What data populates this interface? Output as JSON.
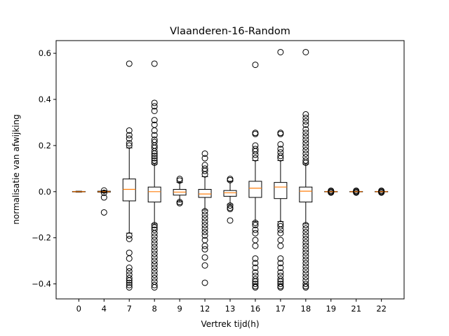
{
  "chart_data": {
    "type": "box",
    "title": "Vlaanderen-16-Random",
    "xlabel": "Vertrek tijd(h)",
    "ylabel": "normalisatie van afwijking",
    "ylim": [
      -0.465,
      0.655
    ],
    "yticks": [
      -0.4,
      -0.2,
      0.0,
      0.2,
      0.4,
      0.6
    ],
    "ytick_labels": [
      "−0.4",
      "−0.2",
      "0.0",
      "0.2",
      "0.4",
      "0.6"
    ],
    "grid": false,
    "colors": {
      "box": "#000000",
      "median": "#ff7f0e",
      "flier": "#000000"
    },
    "categories": [
      "0",
      "4",
      "7",
      "8",
      "9",
      "12",
      "13",
      "16",
      "17",
      "18",
      "19",
      "21",
      "22"
    ],
    "boxes": [
      {
        "label": "0",
        "q1": -0.001,
        "median": 0.0,
        "q3": 0.001,
        "whislo": -0.002,
        "whishi": 0.002,
        "fliers": []
      },
      {
        "label": "4",
        "q1": -0.002,
        "median": 0.0,
        "q3": 0.002,
        "whislo": -0.004,
        "whishi": 0.004,
        "fliers": [
          0.005,
          -0.005,
          -0.025,
          -0.09
        ]
      },
      {
        "label": "7",
        "q1": -0.04,
        "median": 0.01,
        "q3": 0.055,
        "whislo": -0.18,
        "whishi": 0.19,
        "fliers": [
          0.555,
          0.265,
          0.245,
          0.23,
          0.21,
          0.2,
          -0.19,
          -0.205,
          -0.265,
          -0.29,
          -0.33,
          -0.345,
          -0.36,
          -0.375,
          -0.385,
          -0.395,
          -0.405,
          -0.415
        ]
      },
      {
        "label": "8",
        "q1": -0.045,
        "median": 0.0,
        "q3": 0.02,
        "whislo": -0.14,
        "whishi": 0.12,
        "fliers": [
          0.555,
          0.385,
          0.37,
          0.35,
          0.31,
          0.29,
          0.265,
          0.245,
          0.225,
          0.215,
          0.2,
          0.19,
          0.175,
          0.165,
          0.155,
          0.145,
          0.135,
          0.125,
          -0.145,
          -0.155,
          -0.165,
          -0.18,
          -0.195,
          -0.21,
          -0.225,
          -0.24,
          -0.255,
          -0.27,
          -0.285,
          -0.3,
          -0.315,
          -0.33,
          -0.345,
          -0.36,
          -0.375,
          -0.39,
          -0.405,
          -0.415
        ]
      },
      {
        "label": "9",
        "q1": -0.015,
        "median": -0.002,
        "q3": 0.01,
        "whislo": -0.045,
        "whishi": 0.04,
        "fliers": [
          0.055,
          0.048,
          -0.045,
          -0.05
        ]
      },
      {
        "label": "12",
        "q1": -0.025,
        "median": -0.01,
        "q3": 0.01,
        "whislo": -0.08,
        "whishi": 0.065,
        "fliers": [
          0.165,
          0.145,
          0.115,
          0.1,
          0.09,
          0.075,
          -0.085,
          -0.1,
          -0.115,
          -0.13,
          -0.145,
          -0.16,
          -0.175,
          -0.19,
          -0.21,
          -0.235,
          -0.25,
          -0.285,
          -0.32,
          -0.395
        ]
      },
      {
        "label": "13",
        "q1": -0.02,
        "median": -0.005,
        "q3": 0.005,
        "whislo": -0.055,
        "whishi": 0.045,
        "fliers": [
          0.055,
          0.05,
          -0.06,
          -0.07,
          -0.075,
          -0.125
        ]
      },
      {
        "label": "16",
        "q1": -0.025,
        "median": 0.015,
        "q3": 0.045,
        "whislo": -0.13,
        "whishi": 0.135,
        "fliers": [
          0.55,
          0.255,
          0.25,
          0.2,
          0.185,
          0.175,
          0.16,
          0.145,
          -0.135,
          -0.145,
          -0.165,
          -0.18,
          -0.21,
          -0.235,
          -0.29,
          -0.31,
          -0.33,
          -0.35,
          -0.365,
          -0.38,
          -0.39,
          -0.4,
          -0.41,
          -0.415
        ]
      },
      {
        "label": "17",
        "q1": -0.03,
        "median": 0.02,
        "q3": 0.04,
        "whislo": -0.13,
        "whishi": 0.135,
        "fliers": [
          0.605,
          0.255,
          0.25,
          0.205,
          0.185,
          0.17,
          0.155,
          0.145,
          -0.14,
          -0.15,
          -0.165,
          -0.18,
          -0.21,
          -0.235,
          -0.29,
          -0.31,
          -0.33,
          -0.35,
          -0.365,
          -0.38,
          -0.39,
          -0.4,
          -0.41,
          -0.415
        ]
      },
      {
        "label": "18",
        "q1": -0.045,
        "median": 0.002,
        "q3": 0.02,
        "whislo": -0.14,
        "whishi": 0.12,
        "fliers": [
          0.605,
          0.335,
          0.32,
          0.305,
          0.29,
          0.27,
          0.255,
          0.24,
          0.225,
          0.21,
          0.195,
          0.18,
          0.165,
          0.15,
          0.135,
          0.125,
          -0.145,
          -0.16,
          -0.175,
          -0.19,
          -0.205,
          -0.22,
          -0.235,
          -0.25,
          -0.265,
          -0.28,
          -0.295,
          -0.31,
          -0.325,
          -0.34,
          -0.355,
          -0.37,
          -0.385,
          -0.4,
          -0.41,
          -0.415
        ]
      },
      {
        "label": "19",
        "q1": -0.001,
        "median": 0.0,
        "q3": 0.001,
        "whislo": -0.002,
        "whishi": 0.002,
        "fliers": [
          0.004,
          0.002,
          -0.002,
          -0.004
        ]
      },
      {
        "label": "21",
        "q1": -0.001,
        "median": 0.0,
        "q3": 0.001,
        "whislo": -0.002,
        "whishi": 0.002,
        "fliers": [
          0.004,
          0.002,
          -0.002,
          -0.004
        ]
      },
      {
        "label": "22",
        "q1": -0.001,
        "median": 0.0,
        "q3": 0.001,
        "whislo": -0.002,
        "whishi": 0.002,
        "fliers": [
          0.004,
          0.002,
          -0.002,
          -0.004
        ]
      }
    ]
  }
}
